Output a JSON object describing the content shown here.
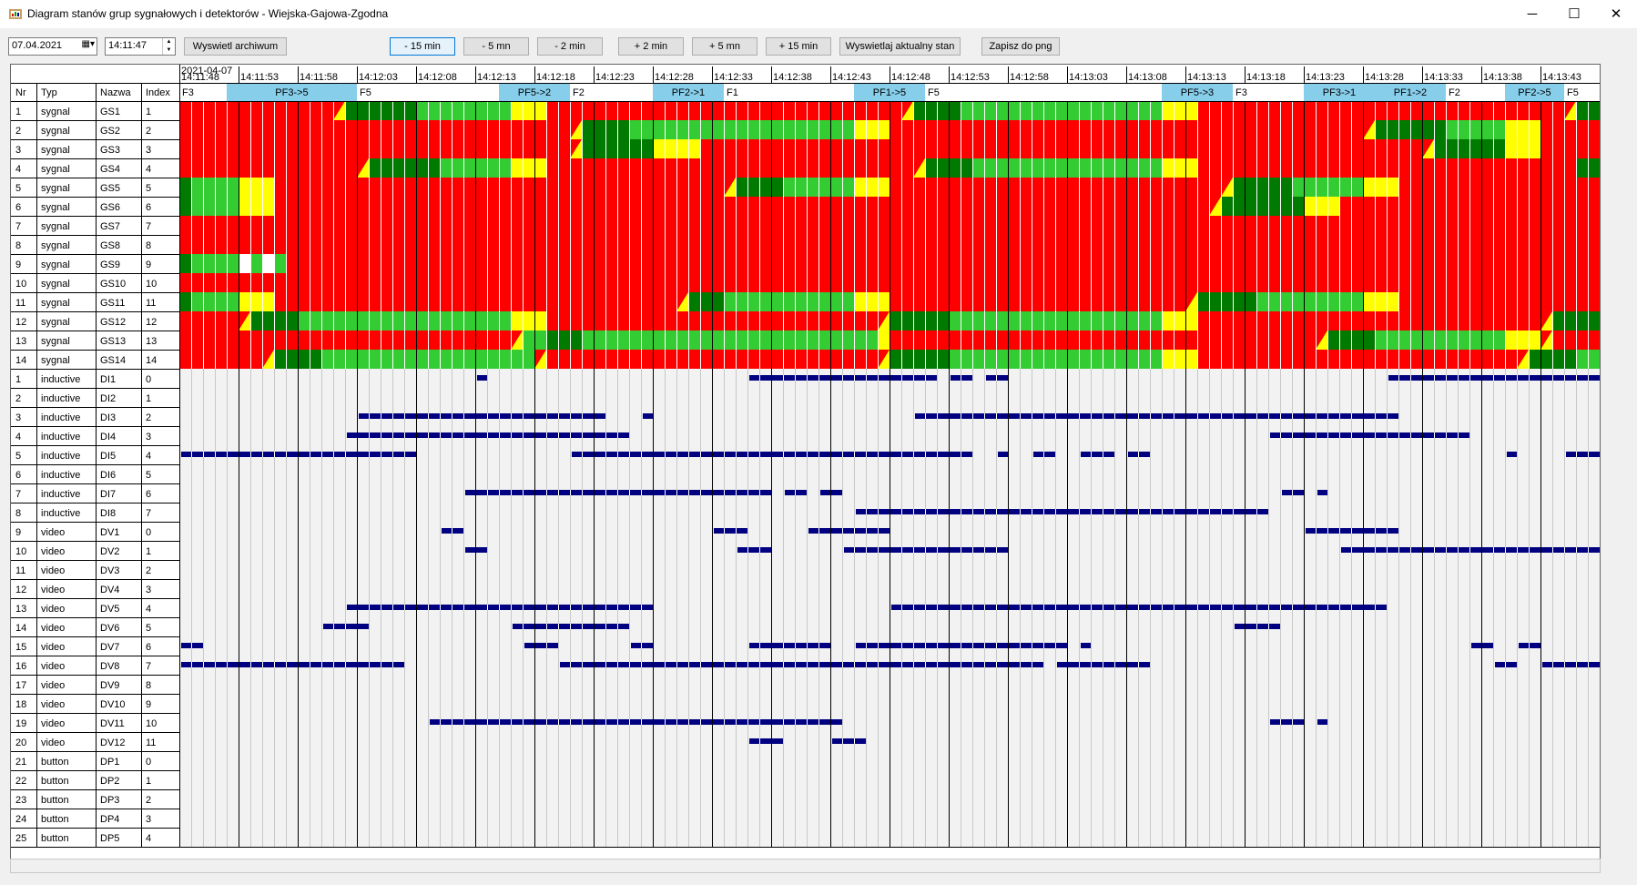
{
  "window": {
    "title": "Diagram stanów grup sygnałowych i detektorów - Wiejska-Gajowa-Zgodna",
    "minimize_glyph": "─",
    "maximize_glyph": "☐",
    "close_glyph": "✕"
  },
  "toolbar": {
    "date_value": "07.04.2021",
    "time_value": "14:11:47",
    "archive_button": "Wyswietl archiwum",
    "nav_buttons": [
      "- 15 min",
      "- 5 mn",
      "- 2 min",
      "+ 2 min",
      "+ 5 mn",
      "+ 15 min"
    ],
    "current_button": "Wyswietlaj aktualny stan",
    "save_button": "Zapisz do png"
  },
  "columns": {
    "nr": "Nr",
    "typ": "Typ",
    "nazwa": "Nazwa",
    "index": "Index"
  },
  "time_axis": {
    "date_label": "2021-04-07",
    "labels": [
      "14:11:48",
      "14:11:53",
      "14:11:58",
      "14:12:03",
      "14:12:08",
      "14:12:13",
      "14:12:18",
      "14:12:23",
      "14:12:28",
      "14:12:33",
      "14:12:38",
      "14:12:43",
      "14:12:48",
      "14:12:53",
      "14:12:58",
      "14:13:03",
      "14:13:08",
      "14:13:13",
      "14:13:18",
      "14:13:23",
      "14:13:28",
      "14:13:33",
      "14:13:38",
      "14:13:43"
    ],
    "total_cells": 120
  },
  "phases": [
    {
      "label": "F3",
      "start": 0,
      "end": 4,
      "transition": false
    },
    {
      "label": "PF3->5",
      "start": 4,
      "end": 15,
      "transition": true
    },
    {
      "label": "F5",
      "start": 15,
      "end": 27,
      "transition": false
    },
    {
      "label": "PF5->2",
      "start": 27,
      "end": 33,
      "transition": true
    },
    {
      "label": "F2",
      "start": 33,
      "end": 40,
      "transition": false
    },
    {
      "label": "PF2->1",
      "start": 40,
      "end": 46,
      "transition": true
    },
    {
      "label": "F1",
      "start": 46,
      "end": 57,
      "transition": false
    },
    {
      "label": "PF1->5",
      "start": 57,
      "end": 63,
      "transition": true
    },
    {
      "label": "F5",
      "start": 63,
      "end": 83,
      "transition": false
    },
    {
      "label": "PF5->3",
      "start": 83,
      "end": 89,
      "transition": true
    },
    {
      "label": "F3",
      "start": 89,
      "end": 95,
      "transition": false
    },
    {
      "label": "PF3->1",
      "start": 95,
      "end": 101,
      "transition": true
    },
    {
      "label": "PF1->2",
      "start": 101,
      "end": 107,
      "transition": true
    },
    {
      "label": "F2",
      "start": 107,
      "end": 112,
      "transition": false
    },
    {
      "label": "PF2->5",
      "start": 112,
      "end": 117,
      "transition": true
    },
    {
      "label": "F5",
      "start": 117,
      "end": 120,
      "transition": false
    }
  ],
  "colors": {
    "red": "#ff0000",
    "green": "#33cc33",
    "dark_green": "#007a00",
    "yellow": "#ffff00",
    "white": "#ffffff",
    "bar": "#000080",
    "phase_blue": "#87ceeb",
    "empty_bg": "#f2f2f2"
  },
  "rows": [
    {
      "nr": "1",
      "typ": "sygnal",
      "nazwa": "GS1",
      "index": "1",
      "segments": [
        [
          "R",
          0,
          13
        ],
        [
          "RY",
          13,
          14
        ],
        [
          "DG",
          14,
          20
        ],
        [
          "G",
          20,
          28
        ],
        [
          "Y",
          28,
          31
        ],
        [
          "R",
          31,
          61
        ],
        [
          "RY",
          61,
          62
        ],
        [
          "DG",
          62,
          66
        ],
        [
          "G",
          66,
          83
        ],
        [
          "Y",
          83,
          86
        ],
        [
          "R",
          86,
          117
        ],
        [
          "RY",
          117,
          118
        ],
        [
          "DG",
          118,
          120
        ]
      ]
    },
    {
      "nr": "2",
      "typ": "sygnal",
      "nazwa": "GS2",
      "index": "2",
      "segments": [
        [
          "R",
          0,
          33
        ],
        [
          "RY",
          33,
          34
        ],
        [
          "DG",
          34,
          38
        ],
        [
          "G",
          38,
          57
        ],
        [
          "Y",
          57,
          60
        ],
        [
          "R",
          60,
          100
        ],
        [
          "RY",
          100,
          101
        ],
        [
          "DG",
          101,
          107
        ],
        [
          "G",
          107,
          112
        ],
        [
          "Y",
          112,
          115
        ],
        [
          "R",
          115,
          120
        ]
      ]
    },
    {
      "nr": "3",
      "typ": "sygnal",
      "nazwa": "GS3",
      "index": "3",
      "segments": [
        [
          "R",
          0,
          33
        ],
        [
          "RY",
          33,
          34
        ],
        [
          "DG",
          34,
          40
        ],
        [
          "Y",
          40,
          44
        ],
        [
          "R",
          44,
          105
        ],
        [
          "RY",
          105,
          106
        ],
        [
          "DG",
          106,
          112
        ],
        [
          "Y",
          112,
          115
        ],
        [
          "R",
          115,
          120
        ]
      ]
    },
    {
      "nr": "4",
      "typ": "sygnal",
      "nazwa": "GS4",
      "index": "4",
      "segments": [
        [
          "R",
          0,
          15
        ],
        [
          "RY",
          15,
          16
        ],
        [
          "DG",
          16,
          22
        ],
        [
          "G",
          22,
          28
        ],
        [
          "Y",
          28,
          31
        ],
        [
          "R",
          31,
          62
        ],
        [
          "RY",
          62,
          63
        ],
        [
          "DG",
          63,
          67
        ],
        [
          "G",
          67,
          83
        ],
        [
          "Y",
          83,
          86
        ],
        [
          "R",
          86,
          118
        ],
        [
          "DG",
          118,
          120
        ]
      ]
    },
    {
      "nr": "5",
      "typ": "sygnal",
      "nazwa": "GS5",
      "index": "5",
      "segments": [
        [
          "DG",
          0,
          1
        ],
        [
          "G",
          1,
          5
        ],
        [
          "Y",
          5,
          8
        ],
        [
          "R",
          8,
          46
        ],
        [
          "RY",
          46,
          47
        ],
        [
          "DG",
          47,
          51
        ],
        [
          "G",
          51,
          57
        ],
        [
          "Y",
          57,
          60
        ],
        [
          "R",
          60,
          88
        ],
        [
          "RY",
          88,
          89
        ],
        [
          "DG",
          89,
          94
        ],
        [
          "G",
          94,
          100
        ],
        [
          "Y",
          100,
          103
        ],
        [
          "R",
          103,
          120
        ]
      ]
    },
    {
      "nr": "6",
      "typ": "sygnal",
      "nazwa": "GS6",
      "index": "6",
      "segments": [
        [
          "DG",
          0,
          1
        ],
        [
          "G",
          1,
          5
        ],
        [
          "Y",
          5,
          8
        ],
        [
          "R",
          8,
          87
        ],
        [
          "RY",
          87,
          88
        ],
        [
          "DG",
          88,
          95
        ],
        [
          "Y",
          95,
          98
        ],
        [
          "R",
          98,
          120
        ]
      ]
    },
    {
      "nr": "7",
      "typ": "sygnal",
      "nazwa": "GS7",
      "index": "7",
      "segments": [
        [
          "R",
          0,
          120
        ]
      ]
    },
    {
      "nr": "8",
      "typ": "sygnal",
      "nazwa": "GS8",
      "index": "8",
      "segments": [
        [
          "R",
          0,
          120
        ]
      ]
    },
    {
      "nr": "9",
      "typ": "sygnal",
      "nazwa": "GS9",
      "index": "9",
      "segments": [
        [
          "DG",
          0,
          1
        ],
        [
          "G",
          1,
          5
        ],
        [
          "W",
          5,
          6
        ],
        [
          "G",
          6,
          7
        ],
        [
          "W",
          7,
          8
        ],
        [
          "G",
          8,
          9
        ],
        [
          "R",
          9,
          120
        ]
      ]
    },
    {
      "nr": "10",
      "typ": "sygnal",
      "nazwa": "GS10",
      "index": "10",
      "segments": [
        [
          "R",
          0,
          120
        ]
      ]
    },
    {
      "nr": "11",
      "typ": "sygnal",
      "nazwa": "GS11",
      "index": "11",
      "segments": [
        [
          "DG",
          0,
          1
        ],
        [
          "G",
          1,
          5
        ],
        [
          "Y",
          5,
          8
        ],
        [
          "R",
          8,
          42
        ],
        [
          "RY",
          42,
          43
        ],
        [
          "DG",
          43,
          46
        ],
        [
          "G",
          46,
          57
        ],
        [
          "Y",
          57,
          60
        ],
        [
          "R",
          60,
          85
        ],
        [
          "RY",
          85,
          86
        ],
        [
          "DG",
          86,
          91
        ],
        [
          "G",
          91,
          100
        ],
        [
          "Y",
          100,
          103
        ],
        [
          "R",
          103,
          120
        ]
      ]
    },
    {
      "nr": "12",
      "typ": "sygnal",
      "nazwa": "GS12",
      "index": "12",
      "segments": [
        [
          "R",
          0,
          5
        ],
        [
          "RY",
          5,
          6
        ],
        [
          "DG",
          6,
          10
        ],
        [
          "G",
          10,
          28
        ],
        [
          "Y",
          28,
          31
        ],
        [
          "R",
          31,
          59
        ],
        [
          "RY",
          59,
          60
        ],
        [
          "DG",
          60,
          65
        ],
        [
          "G",
          65,
          83
        ],
        [
          "Y",
          83,
          86
        ],
        [
          "R",
          86,
          115
        ],
        [
          "RY",
          115,
          116
        ],
        [
          "DG",
          116,
          120
        ]
      ]
    },
    {
      "nr": "13",
      "typ": "sygnal",
      "nazwa": "GS13",
      "index": "13",
      "segments": [
        [
          "R",
          0,
          28
        ],
        [
          "RY",
          28,
          29
        ],
        [
          "G",
          29,
          31
        ],
        [
          "DG",
          31,
          34
        ],
        [
          "G",
          34,
          59
        ],
        [
          "Y",
          59,
          60
        ],
        [
          "R",
          60,
          96
        ],
        [
          "RY",
          96,
          97
        ],
        [
          "DG",
          97,
          101
        ],
        [
          "G",
          101,
          112
        ],
        [
          "Y",
          112,
          115
        ],
        [
          "RY",
          115,
          116
        ],
        [
          "R",
          116,
          120
        ]
      ]
    },
    {
      "nr": "14",
      "typ": "sygnal",
      "nazwa": "GS14",
      "index": "14",
      "segments": [
        [
          "R",
          0,
          7
        ],
        [
          "RY",
          7,
          8
        ],
        [
          "DG",
          8,
          12
        ],
        [
          "G",
          12,
          30
        ],
        [
          "RY",
          30,
          31
        ],
        [
          "R",
          31,
          59
        ],
        [
          "RY",
          59,
          60
        ],
        [
          "DG",
          60,
          65
        ],
        [
          "G",
          65,
          83
        ],
        [
          "Y",
          83,
          86
        ],
        [
          "R",
          86,
          113
        ],
        [
          "RY",
          113,
          114
        ],
        [
          "DG",
          114,
          118
        ],
        [
          "G",
          118,
          120
        ]
      ]
    },
    {
      "nr": "1",
      "typ": "inductive",
      "nazwa": "DI1",
      "index": "0",
      "bars": [
        [
          25,
          26
        ],
        [
          48,
          64
        ],
        [
          65,
          67
        ],
        [
          68,
          70
        ],
        [
          102,
          120
        ]
      ]
    },
    {
      "nr": "2",
      "typ": "inductive",
      "nazwa": "DI2",
      "index": "1",
      "bars": []
    },
    {
      "nr": "3",
      "typ": "inductive",
      "nazwa": "DI3",
      "index": "2",
      "bars": [
        [
          15,
          36
        ],
        [
          39,
          40
        ],
        [
          62,
          103
        ]
      ]
    },
    {
      "nr": "4",
      "typ": "inductive",
      "nazwa": "DI4",
      "index": "3",
      "bars": [
        [
          14,
          38
        ],
        [
          92,
          109
        ]
      ]
    },
    {
      "nr": "5",
      "typ": "inductive",
      "nazwa": "DI5",
      "index": "4",
      "bars": [
        [
          0,
          20
        ],
        [
          33,
          67
        ],
        [
          69,
          70
        ],
        [
          72,
          74
        ],
        [
          76,
          79
        ],
        [
          80,
          82
        ],
        [
          112,
          113
        ],
        [
          117,
          120
        ]
      ]
    },
    {
      "nr": "6",
      "typ": "inductive",
      "nazwa": "DI6",
      "index": "5",
      "bars": []
    },
    {
      "nr": "7",
      "typ": "inductive",
      "nazwa": "DI7",
      "index": "6",
      "bars": [
        [
          24,
          50
        ],
        [
          51,
          53
        ],
        [
          54,
          56
        ],
        [
          93,
          95
        ],
        [
          96,
          97
        ]
      ]
    },
    {
      "nr": "8",
      "typ": "inductive",
      "nazwa": "DI8",
      "index": "7",
      "bars": [
        [
          57,
          92
        ]
      ]
    },
    {
      "nr": "9",
      "typ": "video",
      "nazwa": "DV1",
      "index": "0",
      "bars": [
        [
          22,
          24
        ],
        [
          45,
          48
        ],
        [
          53,
          60
        ],
        [
          95,
          103
        ]
      ]
    },
    {
      "nr": "10",
      "typ": "video",
      "nazwa": "DV2",
      "index": "1",
      "bars": [
        [
          24,
          26
        ],
        [
          47,
          50
        ],
        [
          56,
          70
        ],
        [
          98,
          120
        ]
      ]
    },
    {
      "nr": "11",
      "typ": "video",
      "nazwa": "DV3",
      "index": "2",
      "bars": []
    },
    {
      "nr": "12",
      "typ": "video",
      "nazwa": "DV4",
      "index": "3",
      "bars": []
    },
    {
      "nr": "13",
      "typ": "video",
      "nazwa": "DV5",
      "index": "4",
      "bars": [
        [
          14,
          40
        ],
        [
          60,
          102
        ]
      ]
    },
    {
      "nr": "14",
      "typ": "video",
      "nazwa": "DV6",
      "index": "5",
      "bars": [
        [
          12,
          16
        ],
        [
          28,
          38
        ],
        [
          89,
          93
        ]
      ]
    },
    {
      "nr": "15",
      "typ": "video",
      "nazwa": "DV7",
      "index": "6",
      "bars": [
        [
          0,
          2
        ],
        [
          29,
          32
        ],
        [
          38,
          40
        ],
        [
          48,
          55
        ],
        [
          57,
          75
        ],
        [
          76,
          77
        ],
        [
          109,
          111
        ],
        [
          113,
          115
        ]
      ]
    },
    {
      "nr": "16",
      "typ": "video",
      "nazwa": "DV8",
      "index": "7",
      "bars": [
        [
          0,
          19
        ],
        [
          32,
          73
        ],
        [
          74,
          82
        ],
        [
          111,
          113
        ],
        [
          115,
          120
        ]
      ]
    },
    {
      "nr": "17",
      "typ": "video",
      "nazwa": "DV9",
      "index": "8",
      "bars": []
    },
    {
      "nr": "18",
      "typ": "video",
      "nazwa": "DV10",
      "index": "9",
      "bars": []
    },
    {
      "nr": "19",
      "typ": "video",
      "nazwa": "DV11",
      "index": "10",
      "bars": [
        [
          21,
          56
        ],
        [
          92,
          95
        ],
        [
          96,
          97
        ]
      ]
    },
    {
      "nr": "20",
      "typ": "video",
      "nazwa": "DV12",
      "index": "11",
      "bars": [
        [
          48,
          51
        ],
        [
          55,
          58
        ]
      ]
    },
    {
      "nr": "21",
      "typ": "button",
      "nazwa": "DP1",
      "index": "0",
      "bars": []
    },
    {
      "nr": "22",
      "typ": "button",
      "nazwa": "DP2",
      "index": "1",
      "bars": []
    },
    {
      "nr": "23",
      "typ": "button",
      "nazwa": "DP3",
      "index": "2",
      "bars": []
    },
    {
      "nr": "24",
      "typ": "button",
      "nazwa": "DP4",
      "index": "3",
      "bars": []
    },
    {
      "nr": "25",
      "typ": "button",
      "nazwa": "DP5",
      "index": "4",
      "bars": []
    }
  ]
}
